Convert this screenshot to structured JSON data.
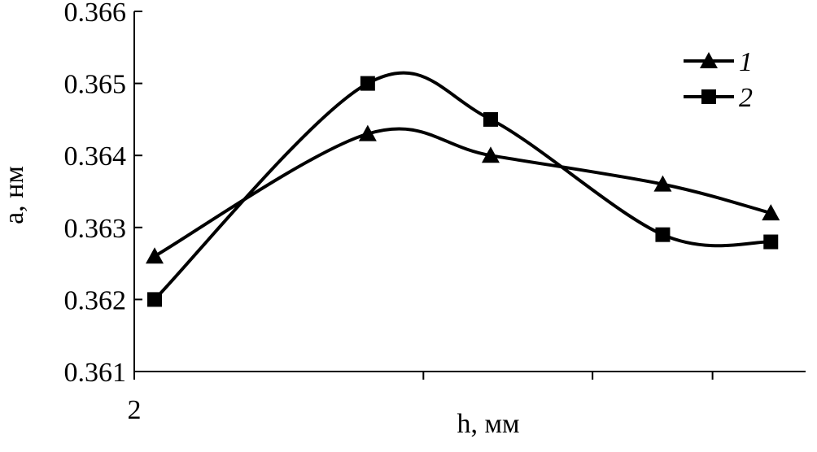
{
  "chart_data": {
    "type": "line",
    "x_label": "h, мм",
    "y_label": "a, нм",
    "xscale": "log",
    "xlim": [
      2,
      10
    ],
    "xticks": [
      2,
      {
        "value": 4,
        "label": null
      },
      {
        "value": 6,
        "label": null
      },
      {
        "value": 8,
        "label": null
      }
    ],
    "ylim": [
      0.361,
      0.366
    ],
    "yticks": [
      0.361,
      0.362,
      0.363,
      0.364,
      0.365,
      0.366
    ],
    "legend_position": "upper right",
    "series": [
      {
        "name": "1",
        "marker": "triangle",
        "color": "#000000",
        "x": [
          2.1,
          3.5,
          4.7,
          7.1,
          9.2
        ],
        "values": [
          0.3626,
          0.3643,
          0.364,
          0.3636,
          0.3632
        ]
      },
      {
        "name": "2",
        "marker": "square",
        "color": "#000000",
        "x": [
          2.1,
          3.5,
          4.7,
          7.1,
          9.2
        ],
        "values": [
          0.362,
          0.365,
          0.3645,
          0.3629,
          0.3628
        ]
      }
    ]
  }
}
